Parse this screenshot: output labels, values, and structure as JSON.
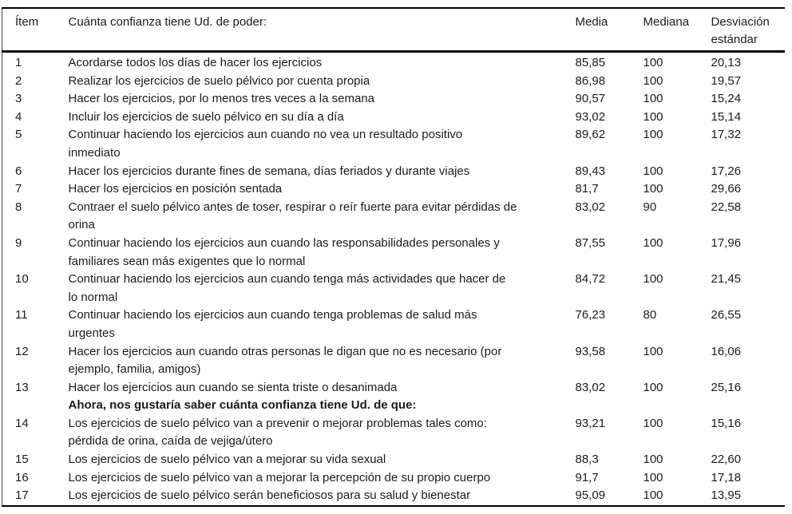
{
  "table": {
    "header": {
      "item": "Ítem",
      "question": "Cuánta confianza tiene Ud. de poder:",
      "media": "Media",
      "mediana": "Mediana",
      "desviacion": "Desviación estándar"
    },
    "rows": [
      {
        "item": "1",
        "text": "Acordarse todos los días de hacer los ejercicios",
        "media": "85,85",
        "mediana": "100",
        "sd": "20,13"
      },
      {
        "item": "2",
        "text": "Realizar los ejercicios de suelo pélvico por cuenta propia",
        "media": "86,98",
        "mediana": "100",
        "sd": "19,57"
      },
      {
        "item": "3",
        "text": "Hacer los ejercicios, por lo menos tres veces a la semana",
        "media": "90,57",
        "mediana": "100",
        "sd": "15,24"
      },
      {
        "item": "4",
        "text": "Incluir los ejercicios de suelo pélvico en su día a día",
        "media": "93,02",
        "mediana": "100",
        "sd": "15,14"
      },
      {
        "item": "5",
        "text": "Continuar haciendo los ejercicios aun cuando no vea un resultado positivo\ninmediato",
        "media": "89,62",
        "mediana": "100",
        "sd": "17,32"
      },
      {
        "item": "6",
        "text": "Hacer los ejercicios durante fines de semana, días feriados y durante viajes",
        "media": "89,43",
        "mediana": "100",
        "sd": "17,26"
      },
      {
        "item": "7",
        "text": "Hacer los ejercicios en posición sentada",
        "media": "81,7",
        "mediana": "100",
        "sd": "29,66"
      },
      {
        "item": "8",
        "text": "Contraer el suelo pélvico antes de toser, respirar o reír fuerte para evitar pérdidas de\norina",
        "media": "83,02",
        "mediana": "90",
        "sd": "22,58"
      },
      {
        "item": "9",
        "text": "Continuar haciendo los ejercicios aun cuando las responsabilidades personales y\nfamiliares sean más exigentes que lo normal",
        "media": "87,55",
        "mediana": "100",
        "sd": "17,96"
      },
      {
        "item": "10",
        "text": "Continuar haciendo los ejercicios aun cuando tenga más actividades que hacer de\nlo normal",
        "media": "84,72",
        "mediana": "100",
        "sd": "21,45"
      },
      {
        "item": "11",
        "text": "Continuar haciendo los ejercicios aun cuando tenga problemas de salud más\nurgentes",
        "media": "76,23",
        "mediana": "80",
        "sd": "26,55"
      },
      {
        "item": "12",
        "text": "Hacer los ejercicios aun cuando otras personas le digan que no es necesario (por\nejemplo, familia, amigos)",
        "media": "93,58",
        "mediana": "100",
        "sd": "16,06"
      },
      {
        "item": "13",
        "text": "Hacer los ejercicios aun cuando se sienta triste o desanimada",
        "media": "83,02",
        "mediana": "100",
        "sd": "25,16"
      },
      {
        "section": true,
        "item": "",
        "text": "Ahora, nos gustaría saber cuánta confianza tiene Ud. de que:",
        "media": "",
        "mediana": "",
        "sd": ""
      },
      {
        "item": "14",
        "text": "Los ejercicios de suelo pélvico van a prevenir o mejorar problemas tales como:\npérdida de orina, caída de vejiga/útero",
        "media": "93,21",
        "mediana": "100",
        "sd": "15,16"
      },
      {
        "item": "15",
        "text": "Los ejercicios de suelo pélvico van a mejorar su vida sexual",
        "media": "88,3",
        "mediana": "100",
        "sd": "22,60"
      },
      {
        "item": "16",
        "text": "Los ejercicios de suelo pélvico van a mejorar la percepción de su propio cuerpo",
        "media": "91,7",
        "mediana": "100",
        "sd": "17,18"
      },
      {
        "item": "17",
        "text": "Los ejercicios de suelo pélvico serán beneficiosos para su salud y bienestar",
        "media": "95,09",
        "mediana": "100",
        "sd": "13,95"
      }
    ]
  }
}
